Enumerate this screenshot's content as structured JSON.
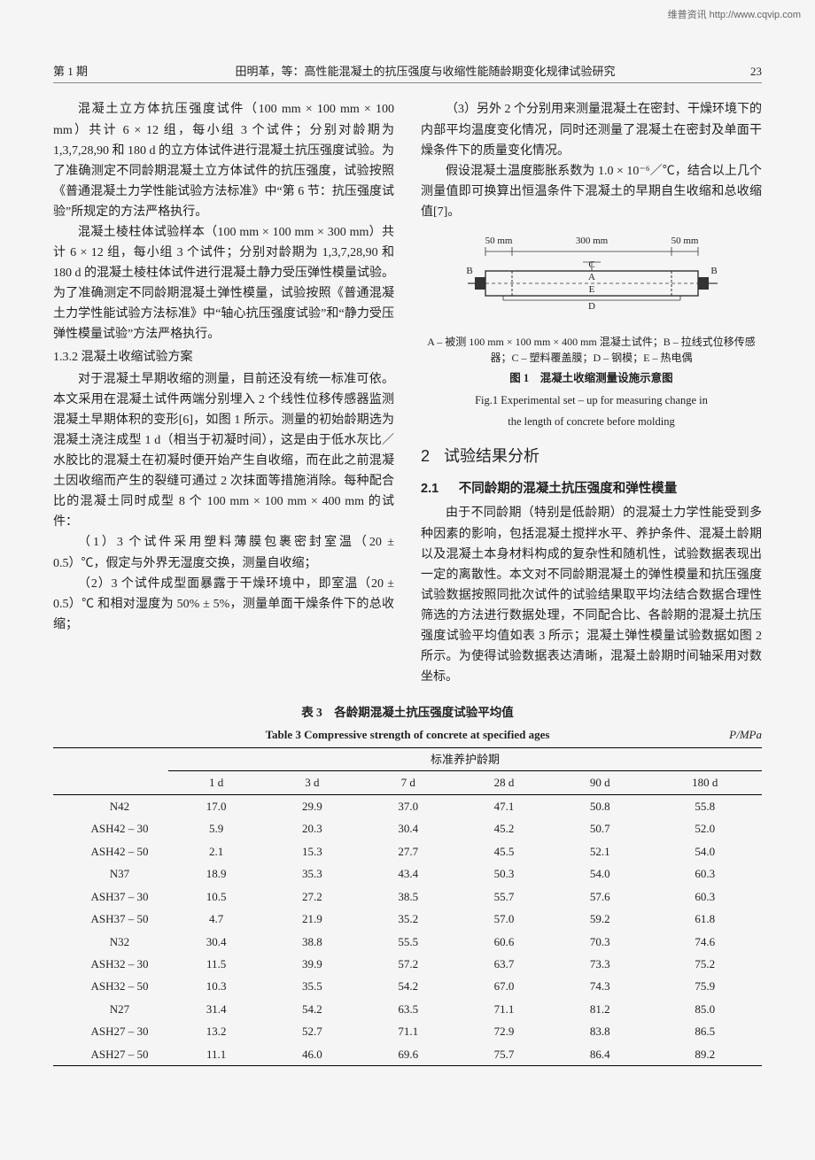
{
  "watermark": "维普资讯 http://www.cqvip.com",
  "header": {
    "issue": "第 1 期",
    "title": "田明革，等：高性能混凝土的抗压强度与收缩性能随龄期变化规律试验研究",
    "pagenum": "23"
  },
  "left_col": {
    "p1": "混凝土立方体抗压强度试件（100 mm × 100 mm × 100 mm）共计 6 × 12 组，每小组 3 个试件；分别对龄期为 1,3,7,28,90 和 180 d 的立方体试件进行混凝土抗压强度试验。为了准确测定不同龄期混凝土立方体试件的抗压强度，试验按照《普通混凝土力学性能试验方法标准》中“第 6 节：抗压强度试验”所规定的方法严格执行。",
    "p2": "混凝土棱柱体试验样本（100 mm × 100 mm × 300 mm）共计 6 × 12 组，每小组 3 个试件；分别对龄期为 1,3,7,28,90 和 180 d 的混凝土棱柱体试件进行混凝土静力受压弹性模量试验。为了准确测定不同龄期混凝土弹性模量，试验按照《普通混凝土力学性能试验方法标准》中“轴心抗压强度试验”和“静力受压弹性模量试验”方法严格执行。",
    "h1": "1.3.2 混凝土收缩试验方案",
    "p3": "对于混凝土早期收缩的测量，目前还没有统一标准可依。本文采用在混凝土试件两端分别埋入 2 个线性位移传感器监测混凝土早期体积的变形[6]，如图 1 所示。测量的初始龄期选为混凝土浇注成型 1 d（相当于初凝时间），这是由于低水灰比／水胶比的混凝土在初凝时便开始产生自收缩，而在此之前混凝土因收缩而产生的裂缝可通过 2 次抹面等措施消除。每种配合比的混凝土同时成型 8 个 100 mm × 100 mm × 400 mm 的试件：",
    "p4": "（1）3 个试件采用塑料薄膜包裹密封室温（20 ± 0.5）℃，假定与外界无湿度交换，测量自收缩；",
    "p5": "（2）3 个试件成型面暴露于干燥环境中，即室温（20 ± 0.5）℃ 和相对湿度为 50% ± 5%，测量单面干燥条件下的总收缩；"
  },
  "right_col": {
    "p1": "（3）另外 2 个分别用来测量混凝土在密封、干燥环境下的内部平均温度变化情况，同时还测量了混凝土在密封及单面干燥条件下的质量变化情况。",
    "p2": "假设混凝土温度膨胀系数为 1.0 × 10⁻⁶／℃，结合以上几个测量值即可换算出恒温条件下混凝土的早期自生收缩和总收缩值[7]。",
    "fig": {
      "dim_labels": [
        "50 mm",
        "300 mm",
        "50 mm"
      ],
      "node_labels": {
        "A": "A",
        "B_left": "B",
        "B_right": "B",
        "C": "C",
        "D": "D",
        "E": "E"
      },
      "note": "A – 被测 100 mm × 100 mm × 400 mm 混凝土试件；B – 拉线式位移传感器；C – 塑料覆盖膜；D – 钢模；E – 热电偶",
      "caption_cn": "图 1　混凝土收缩测量设施示意图",
      "caption_en1": "Fig.1 Experimental set – up for measuring change in",
      "caption_en2": "the length of concrete before molding",
      "colors": {
        "stroke": "#333333",
        "fill": "#ffffff",
        "bg": "#f5f5f5",
        "text": "#222222"
      }
    },
    "sec2_num": "2",
    "sec2_title": "试验结果分析",
    "sub21_num": "2.1",
    "sub21_title": "不同龄期的混凝土抗压强度和弹性模量",
    "p3": "由于不同龄期（特别是低龄期）的混凝土力学性能受到多种因素的影响，包括混凝土搅拌水平、养护条件、混凝土龄期以及混凝土本身材料构成的复杂性和随机性，试验数据表现出一定的离散性。本文对不同龄期混凝土的弹性模量和抗压强度试验数据按照同批次试件的试验结果取平均法结合数据合理性筛选的方法进行数据处理，不同配合比、各龄期的混凝土抗压强度试验平均值如表 3 所示；混凝土弹性模量试验数据如图 2 所示。为使得试验数据表达清晰，混凝土龄期时间轴采用对数坐标。"
  },
  "table3": {
    "title_cn": "表 3　各龄期混凝土抗压强度试验平均值",
    "title_en": "Table 3 Compressive strength of concrete at specified ages",
    "unit": "P/MPa",
    "group_header": "标准养护龄期",
    "columns": [
      "1 d",
      "3 d",
      "7 d",
      "28 d",
      "90 d",
      "180 d"
    ],
    "rows": [
      {
        "label": "N42",
        "values": [
          "17.0",
          "29.9",
          "37.0",
          "47.1",
          "50.8",
          "55.8"
        ]
      },
      {
        "label": "ASH42 – 30",
        "values": [
          "5.9",
          "20.3",
          "30.4",
          "45.2",
          "50.7",
          "52.0"
        ]
      },
      {
        "label": "ASH42 – 50",
        "values": [
          "2.1",
          "15.3",
          "27.7",
          "45.5",
          "52.1",
          "54.0"
        ]
      },
      {
        "label": "N37",
        "values": [
          "18.9",
          "35.3",
          "43.4",
          "50.3",
          "54.0",
          "60.3"
        ]
      },
      {
        "label": "ASH37 – 30",
        "values": [
          "10.5",
          "27.2",
          "38.5",
          "55.7",
          "57.6",
          "60.3"
        ]
      },
      {
        "label": "ASH37 – 50",
        "values": [
          "4.7",
          "21.9",
          "35.2",
          "57.0",
          "59.2",
          "61.8"
        ]
      },
      {
        "label": "N32",
        "values": [
          "30.4",
          "38.8",
          "55.5",
          "60.6",
          "70.3",
          "74.6"
        ]
      },
      {
        "label": "ASH32 – 30",
        "values": [
          "11.5",
          "39.9",
          "57.2",
          "63.7",
          "73.3",
          "75.2"
        ]
      },
      {
        "label": "ASH32 – 50",
        "values": [
          "10.3",
          "35.5",
          "54.2",
          "67.0",
          "74.3",
          "75.9"
        ]
      },
      {
        "label": "N27",
        "values": [
          "31.4",
          "54.2",
          "63.5",
          "71.1",
          "81.2",
          "85.0"
        ]
      },
      {
        "label": "ASH27 – 30",
        "values": [
          "13.2",
          "52.7",
          "71.1",
          "72.9",
          "83.8",
          "86.5"
        ]
      },
      {
        "label": "ASH27 – 50",
        "values": [
          "11.1",
          "46.0",
          "69.6",
          "75.7",
          "86.4",
          "89.2"
        ]
      }
    ]
  }
}
